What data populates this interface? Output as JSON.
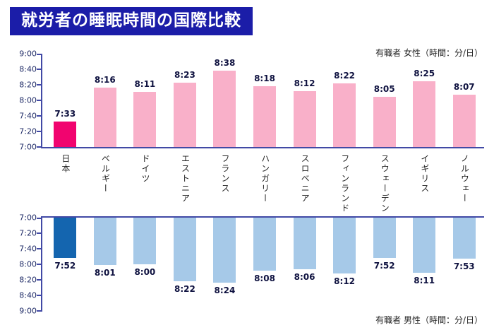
{
  "title": "就労者の睡眠時間の国際比較",
  "colors": {
    "title_bg": "#1b1da8",
    "axis": "#4149a5",
    "tick_label": "#1e2a66",
    "value_label": "#0f1240",
    "women_bar": "#f9b0c9",
    "women_highlight": "#f1046f",
    "men_bar": "#a6c9e8",
    "men_highlight": "#1465af"
  },
  "chart_data": [
    {
      "type": "bar",
      "group": "women",
      "legend": "有職者 女性（時間：分/日）",
      "categories": [
        "日本",
        "ベルギー",
        "ドイツ",
        "エストニア",
        "フランス",
        "ハンガリー",
        "スロベニア",
        "フィンランド",
        "スウェーデン",
        "イギリス",
        "ノルウェー"
      ],
      "values": [
        "7:33",
        "8:16",
        "8:11",
        "8:23",
        "8:38",
        "8:18",
        "8:12",
        "8:22",
        "8:05",
        "8:25",
        "8:07"
      ],
      "ylim": [
        "7:00",
        "9:00"
      ],
      "ticks": [
        "9:00",
        "8:40",
        "8:20",
        "8:00",
        "7:40",
        "7:20",
        "7:00"
      ],
      "bar_direction": "up",
      "highlight_index": 0,
      "grid": false,
      "legend_position": "top-right"
    },
    {
      "type": "bar",
      "group": "men",
      "legend": "有職者 男性（時間：分/日）",
      "categories": [
        "日本",
        "ベルギー",
        "ドイツ",
        "エストニア",
        "フランス",
        "ハンガリー",
        "スロベニア",
        "フィンランド",
        "スウェーデン",
        "イギリス",
        "ノルウェー"
      ],
      "values": [
        "7:52",
        "8:01",
        "8:00",
        "8:22",
        "8:24",
        "8:08",
        "8:06",
        "8:12",
        "7:52",
        "8:11",
        "7:53"
      ],
      "ylim": [
        "7:00",
        "9:00"
      ],
      "ticks": [
        "7:00",
        "7:20",
        "7:40",
        "8:00",
        "8:20",
        "8:40",
        "9:00"
      ],
      "bar_direction": "down",
      "highlight_index": 0,
      "grid": false,
      "legend_position": "bottom-right"
    }
  ]
}
